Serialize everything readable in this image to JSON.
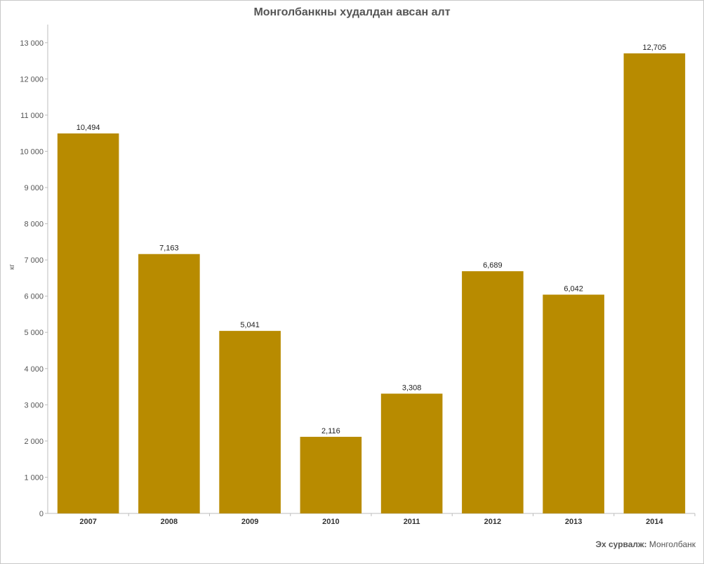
{
  "chart_data": {
    "type": "bar",
    "title": "Монголбанкны худалдан авсан алт",
    "xlabel": "",
    "ylabel": "кг",
    "categories": [
      "2007",
      "2008",
      "2009",
      "2010",
      "2011",
      "2012",
      "2013",
      "2014"
    ],
    "values": [
      10494,
      7163,
      5041,
      2116,
      3308,
      6689,
      6042,
      12705
    ],
    "value_labels": [
      "10,494",
      "7,163",
      "5,041",
      "2,116",
      "3,308",
      "6,689",
      "6,042",
      "12,705"
    ],
    "ylim": [
      0,
      13500
    ],
    "yticks": [
      0,
      1000,
      2000,
      3000,
      4000,
      5000,
      6000,
      7000,
      8000,
      9000,
      10000,
      11000,
      12000,
      13000
    ],
    "ytick_labels": [
      "0",
      "1 000",
      "2 000",
      "3 000",
      "4 000",
      "5 000",
      "6 000",
      "7 000",
      "8 000",
      "9 000",
      "10 000",
      "11 000",
      "12 000",
      "13 000"
    ],
    "grid": false,
    "bar_color": "#b88b00"
  },
  "source": {
    "label": "Эх сурвалж:",
    "value": "Монголбанк"
  }
}
